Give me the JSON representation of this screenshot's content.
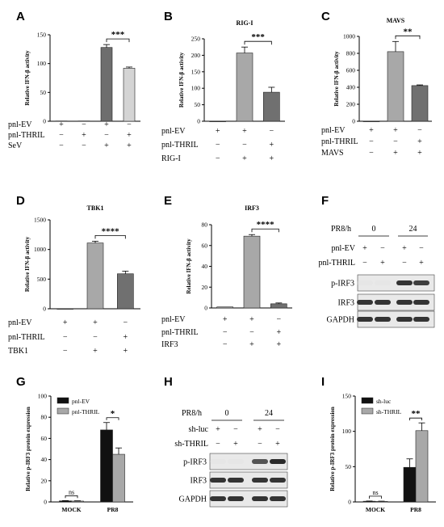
{
  "labels": {
    "A": "A",
    "B": "B",
    "C": "C",
    "D": "D",
    "E": "E",
    "F": "F",
    "G": "G",
    "H": "H",
    "I": "I"
  },
  "chart_data": [
    {
      "id": "A",
      "type": "bar",
      "title": "",
      "ylabel": "Relative IFN-β activity",
      "ylim": [
        0,
        150
      ],
      "yticks": [
        0,
        50,
        100,
        150
      ],
      "categories": [
        "1",
        "2",
        "3",
        "4"
      ],
      "values": [
        0.5,
        0.5,
        128,
        92
      ],
      "errors": [
        0,
        0,
        5,
        2
      ],
      "colors": [
        "#7a7a7a",
        "#7a7a7a",
        "#6e6e6e",
        "#d4d4d4"
      ],
      "sig": {
        "from": 2,
        "to": 3,
        "label": "***"
      },
      "rows": [
        {
          "label": "pnl-EV",
          "syms": [
            "+",
            "−",
            "+",
            "−"
          ]
        },
        {
          "label": "pnl-THRIL",
          "syms": [
            "−",
            "+",
            "−",
            "+"
          ]
        },
        {
          "label": "SeV",
          "syms": [
            "−",
            "−",
            "+",
            "+"
          ]
        }
      ]
    },
    {
      "id": "B",
      "type": "bar",
      "title": "RIG-I",
      "ylabel": "Relative IFN-β activity",
      "ylim": [
        0,
        250
      ],
      "yticks": [
        0,
        50,
        100,
        150,
        200,
        250
      ],
      "categories": [
        "1",
        "2",
        "3"
      ],
      "values": [
        0,
        207,
        88
      ],
      "errors": [
        0,
        18,
        15
      ],
      "colors": [
        "#a8a8a8",
        "#a8a8a8",
        "#707070"
      ],
      "sig": {
        "from": 1,
        "to": 2,
        "label": "***"
      },
      "rows": [
        {
          "label": "pnl-EV",
          "syms": [
            "+",
            "+",
            "−"
          ]
        },
        {
          "label": "pnl-THRIL",
          "syms": [
            "−",
            "−",
            "+"
          ]
        },
        {
          "label": "RIG-I",
          "syms": [
            "−",
            "+",
            "+"
          ]
        }
      ]
    },
    {
      "id": "C",
      "type": "bar",
      "title": "MAVS",
      "ylabel": "Relative IFN-β activity",
      "ylim": [
        0,
        1000
      ],
      "yticks": [
        0,
        200,
        400,
        600,
        800,
        1000
      ],
      "categories": [
        "1",
        "2",
        "3"
      ],
      "values": [
        0,
        820,
        420
      ],
      "errors": [
        0,
        120,
        8
      ],
      "colors": [
        "#a8a8a8",
        "#a8a8a8",
        "#707070"
      ],
      "sig": {
        "from": 1,
        "to": 2,
        "label": "**"
      },
      "rows": [
        {
          "label": "pnl-EV",
          "syms": [
            "+",
            "+",
            "−"
          ]
        },
        {
          "label": "pnl-THRIL",
          "syms": [
            "−",
            "−",
            "+"
          ]
        },
        {
          "label": "MAVS",
          "syms": [
            "−",
            "+",
            "+"
          ]
        }
      ]
    },
    {
      "id": "D",
      "type": "bar",
      "title": "TBK1",
      "ylabel": "Relative IFN-β activity",
      "ylim": [
        0,
        1500
      ],
      "yticks": [
        0,
        500,
        1000,
        1500
      ],
      "categories": [
        "1",
        "2",
        "3"
      ],
      "values": [
        0,
        1110,
        590
      ],
      "errors": [
        0,
        30,
        45
      ],
      "colors": [
        "#a8a8a8",
        "#a8a8a8",
        "#707070"
      ],
      "sig": {
        "from": 1,
        "to": 2,
        "label": "****"
      },
      "rows": [
        {
          "label": "pnl-EV",
          "syms": [
            "+",
            "+",
            "−"
          ]
        },
        {
          "label": "pnl-THRIL",
          "syms": [
            "−",
            "−",
            "+"
          ]
        },
        {
          "label": "TBK1",
          "syms": [
            "−",
            "+",
            "+"
          ]
        }
      ]
    },
    {
      "id": "E",
      "type": "bar",
      "title": "IRF3",
      "ylabel": "Relative IFN-β activity",
      "ylim": [
        0,
        80
      ],
      "yticks": [
        0,
        20,
        40,
        60,
        80
      ],
      "categories": [
        "1",
        "2",
        "3"
      ],
      "values": [
        1,
        69,
        4
      ],
      "errors": [
        0,
        1.5,
        0.8
      ],
      "colors": [
        "#a8a8a8",
        "#a8a8a8",
        "#707070"
      ],
      "sig": {
        "from": 1,
        "to": 2,
        "label": "****"
      },
      "rows": [
        {
          "label": "pnl-EV",
          "syms": [
            "+",
            "+",
            "−"
          ]
        },
        {
          "label": "pnl-THRIL",
          "syms": [
            "−",
            "−",
            "+"
          ]
        },
        {
          "label": "IRF3",
          "syms": [
            "−",
            "+",
            "+"
          ]
        }
      ]
    },
    {
      "id": "G",
      "type": "bar",
      "title": "",
      "ylabel": "Relative p-IRF3 protein expression",
      "ylim": [
        0,
        100
      ],
      "yticks": [
        0,
        20,
        40,
        60,
        80,
        100
      ],
      "categories": [
        "MOCK",
        "PR8"
      ],
      "series": [
        {
          "name": "pnl-EV",
          "values": [
            1,
            68
          ],
          "errors": [
            0.3,
            7
          ],
          "color": "#111111"
        },
        {
          "name": "pnl-THRIL",
          "values": [
            0.8,
            45
          ],
          "errors": [
            0.3,
            6
          ],
          "color": "#a8a8a8"
        }
      ],
      "sig": [
        {
          "cat": 0,
          "label": "ns"
        },
        {
          "cat": 1,
          "label": "*"
        }
      ]
    },
    {
      "id": "I",
      "type": "bar",
      "title": "",
      "ylabel": "Relative p-IRF3 protein expression",
      "ylim": [
        0,
        150
      ],
      "yticks": [
        0,
        50,
        100,
        150
      ],
      "categories": [
        "MOCK",
        "PR8"
      ],
      "series": [
        {
          "name": "sh-luc",
          "values": [
            1,
            49
          ],
          "errors": [
            0.3,
            12
          ],
          "color": "#111111"
        },
        {
          "name": "sh-THRIL",
          "values": [
            0.8,
            101
          ],
          "errors": [
            0.3,
            11
          ],
          "color": "#a8a8a8"
        }
      ],
      "sig": [
        {
          "cat": 0,
          "label": "ns"
        },
        {
          "cat": 1,
          "label": "**"
        }
      ]
    }
  ],
  "blots": [
    {
      "id": "F",
      "time_label": "PR8/h",
      "times": [
        "0",
        "24"
      ],
      "rows": [
        {
          "label": "pnl-EV",
          "syms": [
            "+",
            "−",
            "+",
            "−"
          ]
        },
        {
          "label": "pnl-THRIL",
          "syms": [
            "−",
            "+",
            "−",
            "+"
          ]
        }
      ],
      "bands": [
        {
          "label": "p-IRF3",
          "intensity": [
            0.05,
            0.05,
            0.85,
            0.8
          ]
        },
        {
          "label": "IRF3",
          "intensity": [
            0.85,
            0.85,
            0.85,
            0.85
          ]
        },
        {
          "label": "GAPDH",
          "intensity": [
            0.85,
            0.85,
            0.85,
            0.85
          ]
        }
      ]
    },
    {
      "id": "H",
      "time_label": "PR8/h",
      "times": [
        "0",
        "24"
      ],
      "rows": [
        {
          "label": "sh-luc",
          "syms": [
            "+",
            "−",
            "+",
            "−"
          ]
        },
        {
          "label": "sh-THRIL",
          "syms": [
            "−",
            "+",
            "−",
            "+"
          ]
        }
      ],
      "bands": [
        {
          "label": "p-IRF3",
          "intensity": [
            0.05,
            0.05,
            0.7,
            0.9
          ]
        },
        {
          "label": "IRF3",
          "intensity": [
            0.85,
            0.85,
            0.85,
            0.85
          ]
        },
        {
          "label": "GAPDH",
          "intensity": [
            0.85,
            0.85,
            0.85,
            0.85
          ]
        }
      ]
    }
  ]
}
